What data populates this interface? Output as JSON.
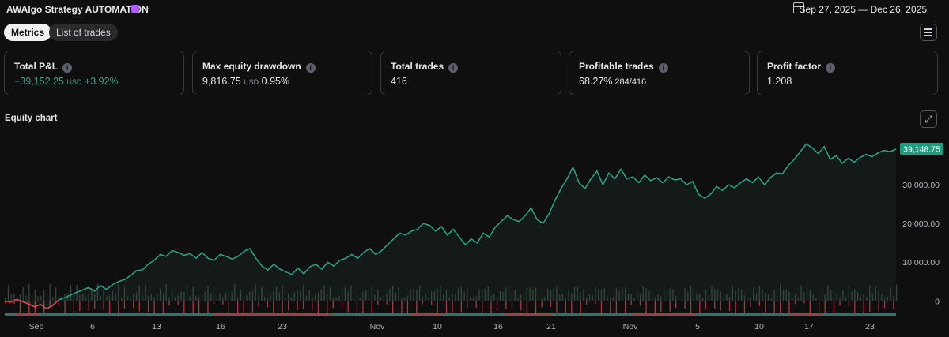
{
  "header": {
    "strategy_name": "AWAlgo Strategy AUTOMATION",
    "date_range": "Sep 27, 2025 — Dec 26, 2025"
  },
  "tabs": [
    {
      "label": "Metrics",
      "active": true
    },
    {
      "label": "List of trades",
      "active": false
    }
  ],
  "metrics": {
    "total_pnl": {
      "label": "Total P&L",
      "value": "+39,152.25",
      "unit": "USD",
      "pct": "+3.92%"
    },
    "max_drawdown": {
      "label": "Max equity drawdown",
      "value": "9,816.75",
      "unit": "USD",
      "pct": "0.95%"
    },
    "total_trades": {
      "label": "Total trades",
      "value": "416"
    },
    "profitable_trades": {
      "label": "Profitable trades",
      "value": "68.27%",
      "ratio": "284/416"
    },
    "profit_factor": {
      "label": "Profit factor",
      "value": "1.208"
    }
  },
  "chart": {
    "title": "Equity chart",
    "last_value_label": "39,148.75",
    "colors": {
      "line": "#26a689",
      "loss": "#e0444f",
      "win_bar": "#34473f",
      "badge": "#1e9e7f"
    }
  },
  "chart_data": {
    "type": "line",
    "ylim": [
      -4000,
      42000
    ],
    "y_ticks": [
      {
        "value": 0,
        "label": "0"
      },
      {
        "value": 10000,
        "label": "10,000.00"
      },
      {
        "value": 20000,
        "label": "20,000.00"
      },
      {
        "value": 30000,
        "label": "30,000.00"
      }
    ],
    "x_tick_labels": [
      "Sep",
      "6",
      "13",
      "16",
      "23",
      "Nov",
      "10",
      "16",
      "21",
      "Nov",
      "5",
      "10",
      "17",
      "23"
    ],
    "series": [
      {
        "values": [
          0,
          -300,
          400,
          -200,
          -800,
          -1500,
          -900,
          -2000,
          -1200,
          300,
          800,
          1500,
          2200,
          2800,
          3500,
          2500,
          4000,
          3000,
          4200,
          5000,
          5500,
          6500,
          7800,
          8000,
          9500,
          10500,
          12000,
          11500,
          13000,
          12500,
          11800,
          12200,
          11000,
          12500,
          11000,
          10500,
          12000,
          11500,
          10800,
          11500,
          12800,
          13500,
          11000,
          9000,
          8000,
          9500,
          8200,
          7500,
          6800,
          8500,
          7000,
          8800,
          9500,
          8200,
          10000,
          9000,
          10500,
          11000,
          12000,
          11000,
          12500,
          13500,
          12000,
          13000,
          14500,
          16000,
          17500,
          17000,
          18000,
          18500,
          20000,
          19500,
          18000,
          19200,
          17000,
          18500,
          16500,
          14500,
          16000,
          15000,
          17500,
          16500,
          19000,
          20500,
          22000,
          21000,
          20500,
          22000,
          24000,
          21000,
          20000,
          22500,
          26000,
          29000,
          31500,
          34500,
          30500,
          29000,
          31500,
          33500,
          30000,
          33000,
          31500,
          34000,
          31500,
          32000,
          30500,
          32500,
          31000,
          31800,
          30500,
          32000,
          31200,
          31500,
          30000,
          30800,
          27500,
          26500,
          27500,
          29500,
          28500,
          30000,
          29200,
          30500,
          31500,
          30500,
          32000,
          30000,
          31800,
          33000,
          32800,
          35000,
          36500,
          38500,
          40500,
          39500,
          38000,
          39800,
          36500,
          37500,
          35500,
          36800,
          35800,
          37000,
          37800,
          37200,
          38200,
          38800,
          38500,
          39148.75
        ]
      }
    ]
  }
}
